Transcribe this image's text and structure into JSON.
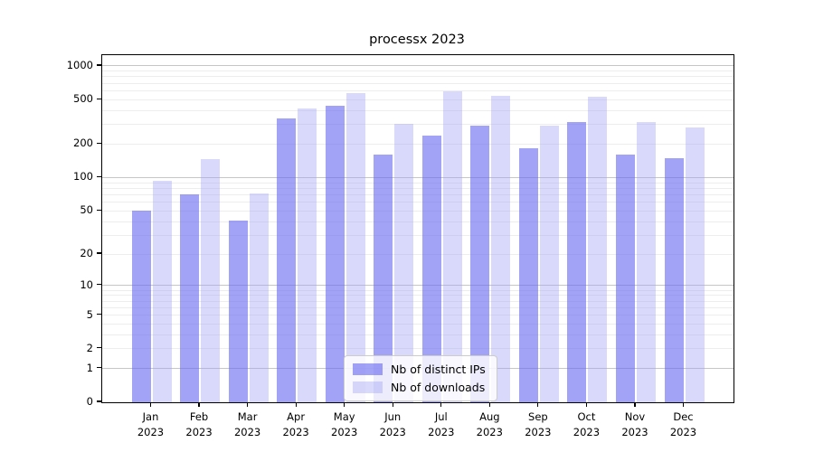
{
  "title": "processx 2023",
  "chart_data": {
    "type": "bar",
    "title": "processx 2023",
    "categories": [
      "Jan 2023",
      "Feb 2023",
      "Mar 2023",
      "Apr 2023",
      "May 2023",
      "Jun 2023",
      "Jul 2023",
      "Aug 2023",
      "Sep 2023",
      "Oct 2023",
      "Nov 2023",
      "Dec 2023"
    ],
    "series": [
      {
        "name": "Nb of distinct IPs",
        "color": "rgba(105,105,240,0.62)",
        "values": [
          50,
          70,
          41,
          340,
          440,
          160,
          240,
          295,
          183,
          315,
          160,
          150
        ]
      },
      {
        "name": "Nb of downloads",
        "color": "rgba(160,160,245,0.40)",
        "values": [
          93,
          147,
          72,
          420,
          575,
          305,
          590,
          540,
          290,
          530,
          315,
          282
        ]
      }
    ],
    "xlabel": "",
    "ylabel": "",
    "yscale": "log1p",
    "yticks": [
      0,
      1,
      2,
      5,
      10,
      20,
      50,
      100,
      200,
      500,
      1000
    ],
    "ylim": [
      0,
      1250
    ],
    "grid": "horizontal",
    "legend_position": "lower-center"
  },
  "colors": {
    "grid_minor": "#ededed",
    "grid_major": "#c6c6c6",
    "spine": "#000000",
    "legend_border": "#cccccc",
    "text": "#000000"
  }
}
